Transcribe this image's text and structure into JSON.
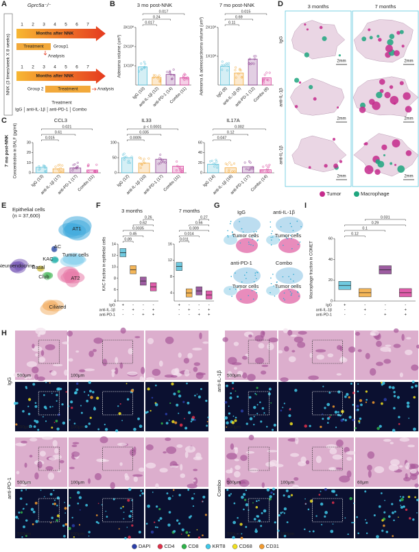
{
  "panel_letters": [
    "A",
    "B",
    "C",
    "D",
    "E",
    "F",
    "G",
    "H",
    "I"
  ],
  "colors": [
    "#56bfd9",
    "#f2a93b",
    "#8c3f91",
    "#d9409b"
  ],
  "panel_a": {
    "mouse": "Gprc5a⁻/⁻",
    "nnk": "NNK (3 times/week X 8 weeks)",
    "timeline_label": "Months after NNK",
    "months": [
      1,
      2,
      3,
      4,
      5,
      6,
      7
    ],
    "group1": {
      "treatment": "Treatment",
      "group": "Group1",
      "analysis": "Analysis"
    },
    "group2": {
      "group": "Group 2",
      "treatment": "Treatment",
      "analysis": "Analysis"
    },
    "legend_title": "Treatment",
    "legend": [
      "IgG",
      "anti-IL-1β",
      "anti-PD-1",
      "Combo"
    ]
  },
  "panel_b": {
    "charts": [
      {
        "type": "bar",
        "title": "3 mo post-NNK",
        "ylabel": "Adenoma volume (um³)",
        "categories": [
          "IgG (10)",
          "anti-IL-1β (12)",
          "anti-PD-1 (14)",
          "Combo (11)"
        ],
        "values": [
          95000000,
          40000000,
          55000000,
          38000000
        ],
        "ylim": [
          0,
          300000000
        ],
        "yticks": [
          {
            "value": 100000000,
            "label": "1X10⁸"
          },
          {
            "value": 200000000,
            "label": "2X10⁸"
          },
          {
            "value": 300000000,
            "label": "3X10⁸"
          }
        ],
        "pvalues": [
          "0.017",
          "0.24",
          "0.017"
        ]
      },
      {
        "type": "bar",
        "title": "7 mo post-NNK",
        "ylabel": "Adenoma & adenocarcinoma volume (um³)",
        "categories": [
          "IgG (8)",
          "anti-IL-1β (9)",
          "anti-PD-1 (12)",
          "Combo (8)"
        ],
        "values": [
          65000000,
          42000000,
          90000000,
          25000000
        ],
        "ylim": [
          0,
          200000000
        ],
        "yticks": [
          {
            "value": 100000000,
            "label": "1X10⁸"
          },
          {
            "value": 200000000,
            "label": "2X10⁸"
          }
        ],
        "pvalues": [
          "0.11",
          "0.69",
          "0.015"
        ]
      }
    ]
  },
  "panel_c": {
    "side_label": "7 mo post-NNK",
    "ylabel": "Concentration in BALF (pg/ml)",
    "charts": [
      {
        "type": "bar",
        "title": "CCL3",
        "categories": [
          "IgG (13)",
          "anti-IL-1β (17)",
          "anti-PD-1 (17)",
          "Combo (11)"
        ],
        "values": [
          5.5,
          4,
          4.8,
          2.8
        ],
        "ylim": [
          0,
          30
        ],
        "yticks": [
          0,
          10,
          20,
          30
        ],
        "pvalues": [
          "0.015",
          "0.61",
          "0.021"
        ]
      },
      {
        "type": "bar",
        "title": "IL33",
        "categories": [
          "IgG (12)",
          "anti-IL-1β (10)",
          "anti-PD-1 (17)",
          "Combo (11)"
        ],
        "values": [
          50,
          32,
          45,
          22
        ],
        "ylim": [
          0,
          100
        ],
        "yticks": [
          0,
          50,
          100
        ],
        "pvalues": [
          "0.0005",
          "0.035",
          "p < 0.0001"
        ]
      },
      {
        "type": "bar",
        "title": "IL17A",
        "categories": [
          "IgG (14)",
          "anti-IL-1β (16)",
          "anti-PD-1 (17)",
          "Combo (14)"
        ],
        "values": [
          17,
          10,
          12,
          6
        ],
        "ylim": [
          0,
          60
        ],
        "yticks": [
          0,
          20,
          40,
          60
        ],
        "pvalues": [
          "0.047",
          "0.12",
          "0.002"
        ]
      }
    ]
  },
  "panel_d": {
    "columns": [
      "3 months",
      "7 months"
    ],
    "rows": [
      "IgG",
      "anti-IL-1β",
      "anti-IL-1β"
    ],
    "scale": "2mm",
    "legend": [
      "Tumor",
      "Macrophage"
    ],
    "legend_colors": [
      "#c42a8c",
      "#1fa67f"
    ]
  },
  "panel_e": {
    "title": "Epithelial cells",
    "n": "(n = 37,600)",
    "clusters": [
      "AT1",
      "AC",
      "KAC",
      "Tumor cells",
      "Neuroendocrine",
      "Basal",
      "Club",
      "AT2",
      "Ciliated"
    ]
  },
  "panel_f": {
    "ylabel": "KAC Faction in epithelial cells",
    "conditions": [
      {
        "name": "IgG",
        "signs": [
          "+",
          "-",
          "-",
          "-"
        ]
      },
      {
        "name": "anti-IL-1β",
        "signs": [
          "-",
          "+",
          "-",
          "+"
        ]
      },
      {
        "name": "anti-PD-1",
        "signs": [
          "-",
          "-",
          "+",
          "+"
        ]
      }
    ],
    "charts": [
      {
        "type": "box",
        "title": "3 months",
        "values": [
          12.5,
          9.5,
          7.5,
          6.5
        ],
        "ylim": [
          4,
          14
        ],
        "yticks": [
          4,
          6,
          8,
          10,
          12,
          14
        ],
        "pvalues": [
          "0.89",
          "0.45",
          "0.0035",
          "0.62",
          "0.26"
        ]
      },
      {
        "type": "box",
        "title": "7 months",
        "values": [
          10.5,
          4,
          4.5,
          3.5
        ],
        "ylim": [
          2,
          16
        ],
        "yticks": [
          4,
          8,
          12,
          16
        ],
        "pvalues": [
          "0.011",
          "0.014",
          "0.009",
          "0.56",
          "0.27"
        ]
      }
    ]
  },
  "panel_g": {
    "groups": [
      "IgG",
      "anti-IL-1β",
      "anti-PD-1",
      "Combo"
    ],
    "label": "Tumor cells"
  },
  "panel_i": {
    "conditions": [
      {
        "name": "IgG",
        "signs": [
          "+",
          "-",
          "-",
          "-"
        ]
      },
      {
        "name": "anti-IL-1β",
        "signs": [
          "-",
          "+",
          "-",
          "+"
        ]
      },
      {
        "name": "anti-PD-1",
        "signs": [
          "-",
          "-",
          "+",
          "+"
        ]
      }
    ],
    "chart": {
      "type": "box",
      "ylabel": "Macrophage fraction in COMET",
      "values": [
        15,
        8,
        30,
        8
      ],
      "ylim": [
        0,
        60
      ],
      "yticks": [
        0,
        20,
        40,
        60
      ],
      "pvalues": [
        "0.12",
        "0.1",
        "0.29",
        "0.031"
      ]
    }
  },
  "panel_h": {
    "blocks": [
      {
        "name": "IgG",
        "top": [
          "500μm",
          "100μm"
        ],
        "bottom": [
          "500μm",
          "100μm"
        ]
      },
      {
        "name": "anti-IL-1β",
        "top": [
          "500μm"
        ],
        "bottom": [
          "500μm"
        ]
      },
      {
        "name": "anti-PD-1",
        "top": [
          "500μm",
          "100μm"
        ],
        "bottom": [
          "500μm",
          "100μm"
        ]
      },
      {
        "name": "Combo",
        "top": [
          "500μm",
          "100μm",
          "60μm"
        ],
        "bottom": [
          "500μm",
          "100μm"
        ]
      }
    ],
    "legend": [
      "DAPI",
      "CD4",
      "CD8",
      "KRT8",
      "CD68",
      "CD31"
    ],
    "legend_colors": [
      "#2b3fa8",
      "#e0304a",
      "#2fb34a",
      "#3fc8e8",
      "#f0e020",
      "#f29a2e"
    ]
  }
}
